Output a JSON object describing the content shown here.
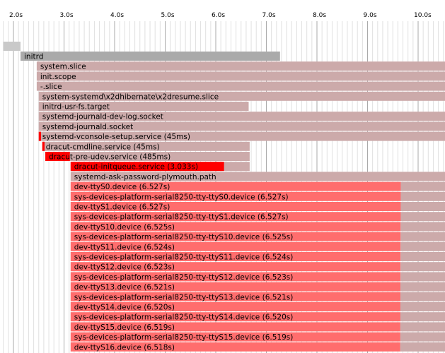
{
  "chart_data": {
    "type": "gantt",
    "x_unit": "s",
    "x_tick_labels": [
      "2.0s",
      "3.0s",
      "4.0s",
      "5.0s",
      "6.0s",
      "7.0s",
      "8.0s",
      "9.0s",
      "10.0s"
    ],
    "x_ticks": [
      2,
      3,
      4,
      5,
      6,
      7,
      8,
      9,
      10
    ],
    "x_minor_step": 0.1,
    "xlim": [
      1.8,
      10.55
    ],
    "grid": true,
    "colors": {
      "kernel": "#c9c9c9",
      "initrd": "#aaaaaa",
      "unit_active": "#ccaaaa",
      "unit_activating": "#ff0000",
      "device": "#ff6d6d",
      "grid_major": "#aaaaaa",
      "grid_minor": "#e0e0e0",
      "text": "#000000"
    },
    "top_bar": {
      "label": "",
      "start": 1.8,
      "end": 2.14,
      "color": "kernel"
    },
    "bars": [
      {
        "label": "initrd",
        "start": 2.14,
        "end": 7.27,
        "activating_end": 2.14,
        "color": "initrd"
      },
      {
        "label": "system.slice",
        "start": 2.46,
        "end": 10.55,
        "activating_end": 2.46,
        "color": "unit_active"
      },
      {
        "label": "init.scope",
        "start": 2.46,
        "end": 10.55,
        "activating_end": 2.46,
        "color": "unit_active"
      },
      {
        "label": "-.slice",
        "start": 2.46,
        "end": 10.55,
        "activating_end": 2.46,
        "color": "unit_active"
      },
      {
        "label": "system-systemd\\x2dhibernate\\x2dresume.slice",
        "start": 2.5,
        "end": 10.55,
        "activating_end": 2.5,
        "color": "unit_active"
      },
      {
        "label": "initrd-usr-fs.target",
        "start": 2.5,
        "end": 6.65,
        "activating_end": 2.5,
        "color": "unit_active"
      },
      {
        "label": "systemd-journald-dev-log.socket",
        "start": 2.5,
        "end": 10.55,
        "activating_end": 2.5,
        "color": "unit_active"
      },
      {
        "label": "systemd-journald.socket",
        "start": 2.5,
        "end": 10.55,
        "activating_end": 2.5,
        "color": "unit_active"
      },
      {
        "label": "systemd-vconsole-setup.service (45ms)",
        "start": 2.5,
        "end": 10.55,
        "activating_end": 2.545,
        "color": "unit_active"
      },
      {
        "label": "dracut-cmdline.service (45ms)",
        "start": 2.57,
        "end": 6.67,
        "activating_end": 2.615,
        "color": "unit_active"
      },
      {
        "label": "dracut-pre-udev.service (485ms)",
        "start": 2.63,
        "end": 6.67,
        "activating_end": 3.115,
        "color": "unit_active"
      },
      {
        "label": "dracut-initqueue.service (3.033s)",
        "start": 3.13,
        "end": 6.67,
        "activating_end": 6.163,
        "color": "unit_active"
      },
      {
        "label": "systemd-ask-password-plymouth.path",
        "start": 3.13,
        "end": 10.55,
        "activating_end": 3.13,
        "color": "unit_active"
      },
      {
        "label": "dev-ttyS0.device (6.527s)",
        "start": 3.13,
        "end": 9.657,
        "activating_end": 9.657,
        "color": "device",
        "tail_end": 10.55
      },
      {
        "label": "sys-devices-platform-serial8250-tty-ttyS0.device (6.527s)",
        "start": 3.13,
        "end": 9.657,
        "activating_end": 9.657,
        "color": "device",
        "tail_end": 10.55
      },
      {
        "label": "dev-ttyS1.device (6.527s)",
        "start": 3.13,
        "end": 9.657,
        "activating_end": 9.657,
        "color": "device",
        "tail_end": 10.55
      },
      {
        "label": "sys-devices-platform-serial8250-tty-ttyS1.device (6.527s)",
        "start": 3.13,
        "end": 9.657,
        "activating_end": 9.657,
        "color": "device",
        "tail_end": 10.55
      },
      {
        "label": "dev-ttyS10.device (6.525s)",
        "start": 3.13,
        "end": 9.655,
        "activating_end": 9.655,
        "color": "device",
        "tail_end": 10.55
      },
      {
        "label": "sys-devices-platform-serial8250-tty-ttyS10.device (6.525s)",
        "start": 3.13,
        "end": 9.655,
        "activating_end": 9.655,
        "color": "device",
        "tail_end": 10.55
      },
      {
        "label": "dev-ttyS11.device (6.524s)",
        "start": 3.13,
        "end": 9.654,
        "activating_end": 9.654,
        "color": "device",
        "tail_end": 10.55
      },
      {
        "label": "sys-devices-platform-serial8250-tty-ttyS11.device (6.524s)",
        "start": 3.13,
        "end": 9.654,
        "activating_end": 9.654,
        "color": "device",
        "tail_end": 10.55
      },
      {
        "label": "dev-ttyS12.device (6.523s)",
        "start": 3.13,
        "end": 9.653,
        "activating_end": 9.653,
        "color": "device",
        "tail_end": 10.55
      },
      {
        "label": "sys-devices-platform-serial8250-tty-ttyS12.device (6.523s)",
        "start": 3.13,
        "end": 9.653,
        "activating_end": 9.653,
        "color": "device",
        "tail_end": 10.55
      },
      {
        "label": "dev-ttyS13.device (6.521s)",
        "start": 3.13,
        "end": 9.651,
        "activating_end": 9.651,
        "color": "device",
        "tail_end": 10.55
      },
      {
        "label": "sys-devices-platform-serial8250-tty-ttyS13.device (6.521s)",
        "start": 3.13,
        "end": 9.651,
        "activating_end": 9.651,
        "color": "device",
        "tail_end": 10.55
      },
      {
        "label": "dev-ttyS14.device (6.520s)",
        "start": 3.13,
        "end": 9.65,
        "activating_end": 9.65,
        "color": "device",
        "tail_end": 10.55
      },
      {
        "label": "sys-devices-platform-serial8250-tty-ttyS14.device (6.520s)",
        "start": 3.13,
        "end": 9.65,
        "activating_end": 9.65,
        "color": "device",
        "tail_end": 10.55
      },
      {
        "label": "dev-ttyS15.device (6.519s)",
        "start": 3.13,
        "end": 9.649,
        "activating_end": 9.649,
        "color": "device",
        "tail_end": 10.55
      },
      {
        "label": "sys-devices-platform-serial8250-tty-ttyS15.device (6.519s)",
        "start": 3.13,
        "end": 9.649,
        "activating_end": 9.649,
        "color": "device",
        "tail_end": 10.55
      },
      {
        "label": "dev-ttyS16.device (6.518s)",
        "start": 3.13,
        "end": 9.648,
        "activating_end": 9.648,
        "color": "device",
        "tail_end": 10.55
      }
    ]
  }
}
